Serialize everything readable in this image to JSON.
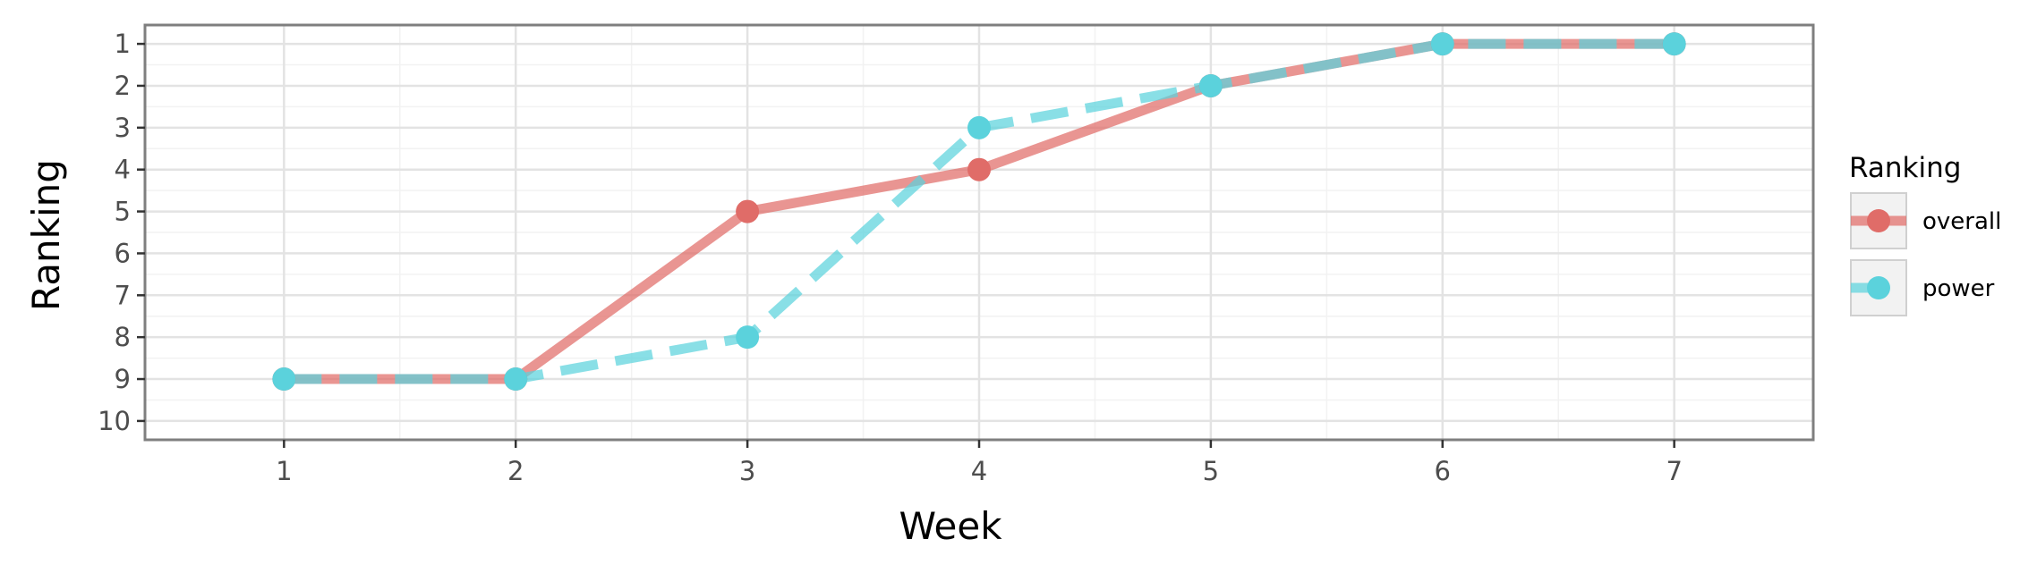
{
  "chart_data": {
    "type": "line",
    "xlabel": "Week",
    "ylabel": "Ranking",
    "x": [
      1,
      2,
      3,
      4,
      5,
      6,
      7
    ],
    "xlim": [
      0.4,
      7.6
    ],
    "ylim": [
      10.45,
      0.55
    ],
    "y_reversed": true,
    "x_ticks": [
      "1",
      "2",
      "3",
      "4",
      "5",
      "6",
      "7"
    ],
    "y_ticks": [
      "1",
      "2",
      "3",
      "4",
      "5",
      "6",
      "7",
      "8",
      "9",
      "10"
    ],
    "grid": true,
    "legend": {
      "title": "Ranking",
      "placement": "right",
      "entries": [
        "overall",
        "power"
      ]
    },
    "series": [
      {
        "name": "overall",
        "values": [
          9,
          9,
          5,
          4,
          2,
          1,
          1
        ],
        "color": "#e06c68",
        "line": "solid"
      },
      {
        "name": "power",
        "values": [
          9,
          9,
          8,
          3,
          2,
          1,
          1
        ],
        "color": "#5bd2dc",
        "line": "dashed"
      }
    ]
  }
}
